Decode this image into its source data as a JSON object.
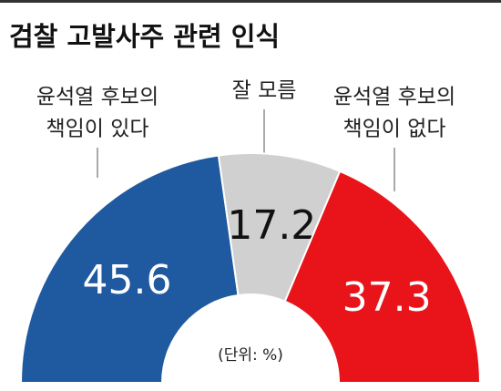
{
  "chart_data": {
    "type": "half-donut",
    "title": "검찰 고발사주 관련 인식",
    "categories": [
      [
        "윤석열 후보의",
        "책임이 있다"
      ],
      [
        "잘 모름"
      ],
      [
        "윤석열 후보의",
        "책임이 없다"
      ]
    ],
    "values": [
      45.6,
      17.2,
      37.3
    ],
    "colors": [
      "#1f5aa0",
      "#d0d0d0",
      "#e8141a"
    ],
    "label_colors": [
      "#ffffff",
      "#111111",
      "#ffffff"
    ],
    "note": "(단위: %)"
  }
}
